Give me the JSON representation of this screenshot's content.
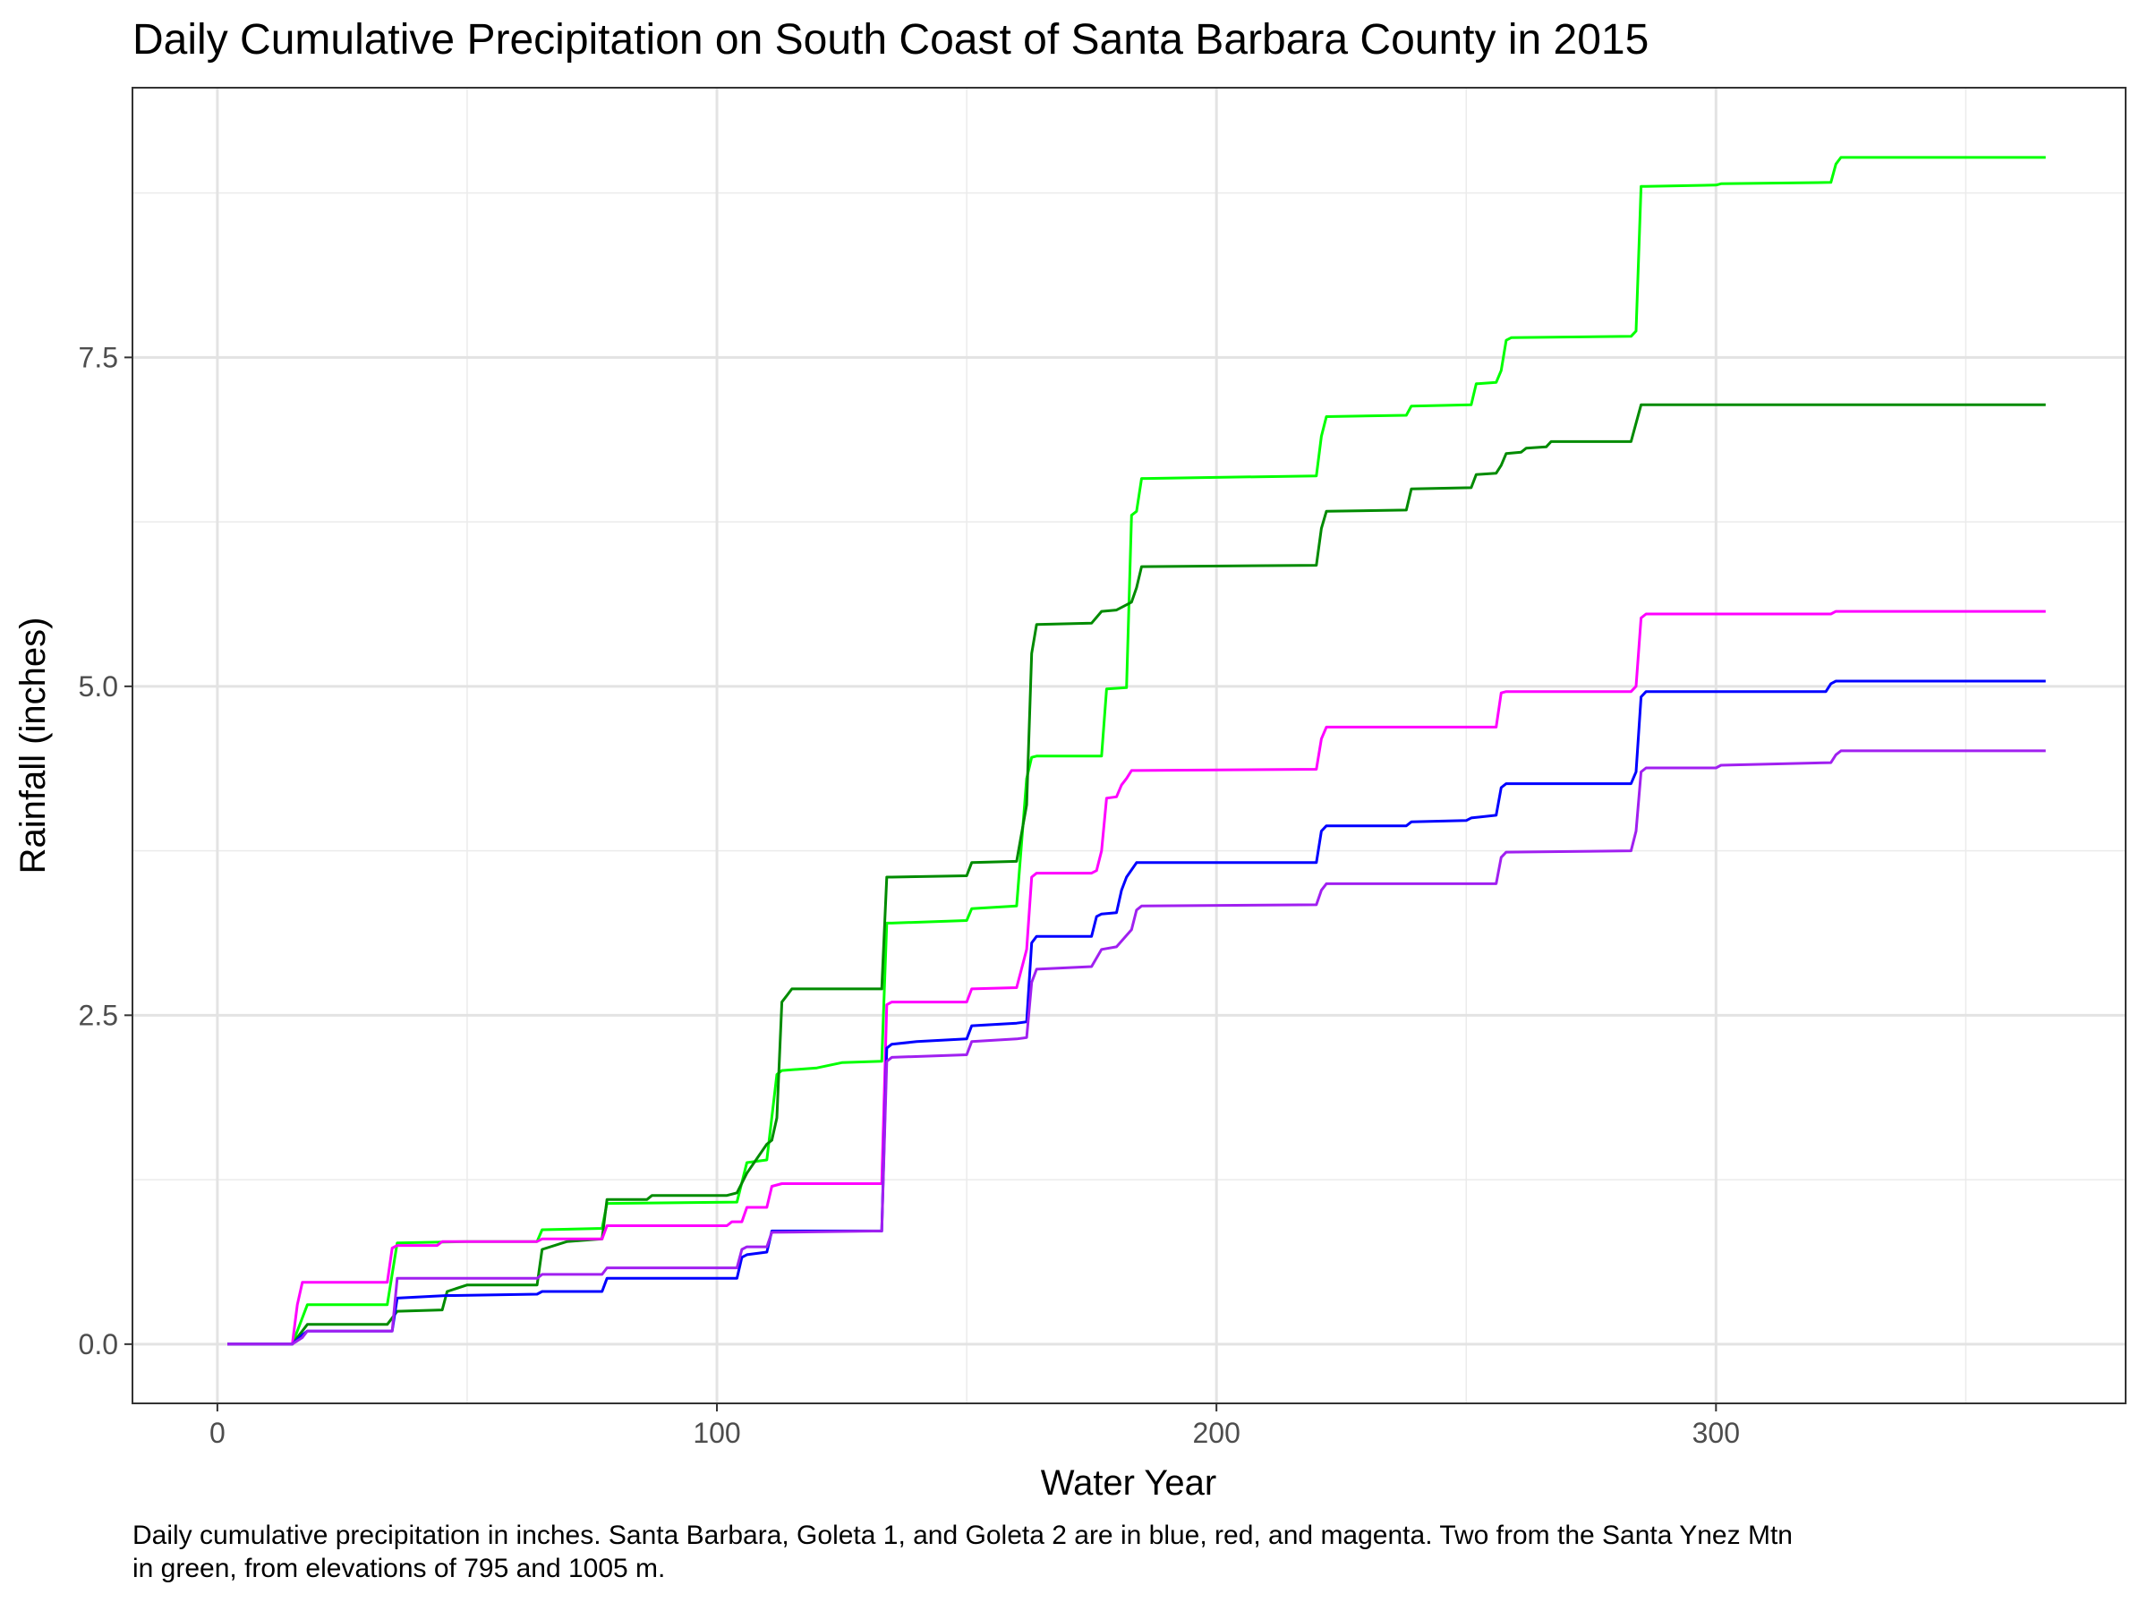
{
  "chart_data": {
    "type": "line",
    "title": "Daily Cumulative Precipitation on South Coast of Santa Barbara County in 2015",
    "xlabel": "Water Year",
    "ylabel": "Rainfall (inches)",
    "xlim": [
      -17,
      382
    ],
    "ylim": [
      -0.45,
      9.55
    ],
    "x_ticks": [
      0,
      100,
      200,
      300
    ],
    "x_tick_labels": [
      "0",
      "100",
      "200",
      "300"
    ],
    "y_ticks": [
      0,
      2.5,
      5,
      7.5
    ],
    "y_tick_labels": [
      "0.0",
      "2.5",
      "5.0",
      "7.5"
    ],
    "x_minor_grid": [
      50,
      150,
      250,
      350
    ],
    "y_minor_grid": [
      1.25,
      3.75,
      6.25,
      8.75
    ],
    "grid": true,
    "theme": "bw",
    "caption": "Daily cumulative precipitation in inches. Santa Barbara, Goleta 1, and Goleta 2 are in blue, red, and magenta. Two from the Santa Ynez Mtn\nin green, from elevations of 795 and 1005 m.",
    "series": [
      {
        "color": "#00ff00",
        "x": [
          2,
          15,
          17,
          18,
          34,
          36,
          50,
          64,
          65,
          77,
          78,
          104,
          106,
          110,
          112,
          113,
          120,
          125,
          133,
          134,
          135,
          150,
          151,
          160,
          162,
          163,
          164,
          177,
          178,
          182,
          183,
          184,
          185,
          186,
          220,
          221,
          222,
          238,
          239,
          251,
          252,
          256,
          257,
          258,
          259,
          283,
          284,
          285,
          286,
          300,
          301,
          323,
          324,
          325,
          366
        ],
        "y": [
          0,
          0,
          0.2,
          0.3,
          0.3,
          0.77,
          0.78,
          0.78,
          0.87,
          0.88,
          1.07,
          1.08,
          1.38,
          1.4,
          2.05,
          2.08,
          2.1,
          2.14,
          2.15,
          3.2,
          3.2,
          3.22,
          3.31,
          3.33,
          4.3,
          4.46,
          4.47,
          4.47,
          4.98,
          4.99,
          6.3,
          6.33,
          6.58,
          6.58,
          6.6,
          6.9,
          7.05,
          7.06,
          7.13,
          7.14,
          7.3,
          7.31,
          7.4,
          7.63,
          7.65,
          7.66,
          7.7,
          8.8,
          8.8,
          8.81,
          8.82,
          8.83,
          8.97,
          9.02,
          9.02
        ]
      },
      {
        "color": "#008b00",
        "x": [
          2,
          15,
          17,
          18,
          34,
          36,
          45,
          46,
          50,
          64,
          65,
          70,
          77,
          78,
          86,
          87,
          102,
          104,
          106,
          110,
          111,
          112,
          113,
          114,
          115,
          133,
          134,
          135,
          150,
          151,
          160,
          162,
          163,
          164,
          175,
          177,
          180,
          183,
          184,
          185,
          220,
          221,
          222,
          238,
          239,
          251,
          252,
          256,
          257,
          258,
          261,
          262,
          266,
          267,
          283,
          284,
          285,
          366
        ],
        "y": [
          0,
          0,
          0.1,
          0.15,
          0.15,
          0.25,
          0.26,
          0.4,
          0.45,
          0.45,
          0.72,
          0.78,
          0.8,
          1.1,
          1.1,
          1.13,
          1.13,
          1.15,
          1.3,
          1.52,
          1.55,
          1.72,
          2.6,
          2.65,
          2.7,
          2.7,
          3.55,
          3.55,
          3.56,
          3.66,
          3.67,
          4.1,
          5.25,
          5.47,
          5.48,
          5.57,
          5.58,
          5.64,
          5.75,
          5.91,
          5.92,
          6.2,
          6.33,
          6.34,
          6.5,
          6.51,
          6.61,
          6.62,
          6.68,
          6.77,
          6.78,
          6.81,
          6.82,
          6.86,
          6.86,
          7.0,
          7.14,
          7.14
        ]
      },
      {
        "color": "#ff00ff",
        "x": [
          2,
          15,
          16,
          17,
          34,
          35,
          36,
          44,
          45,
          64,
          65,
          77,
          78,
          102,
          103,
          105,
          106,
          110,
          111,
          113,
          133,
          134,
          135,
          150,
          151,
          160,
          162,
          163,
          164,
          175,
          176,
          177,
          178,
          180,
          181,
          182,
          183,
          220,
          221,
          222,
          256,
          257,
          258,
          283,
          284,
          285,
          286,
          323,
          324,
          366
        ],
        "y": [
          0,
          0,
          0.3,
          0.47,
          0.47,
          0.73,
          0.75,
          0.75,
          0.78,
          0.78,
          0.8,
          0.8,
          0.9,
          0.9,
          0.93,
          0.93,
          1.04,
          1.04,
          1.2,
          1.22,
          1.22,
          2.58,
          2.6,
          2.6,
          2.7,
          2.71,
          3.0,
          3.55,
          3.58,
          3.58,
          3.6,
          3.75,
          4.15,
          4.16,
          4.25,
          4.3,
          4.36,
          4.37,
          4.6,
          4.69,
          4.69,
          4.95,
          4.96,
          4.96,
          5.0,
          5.52,
          5.55,
          5.55,
          5.57,
          5.57
        ]
      },
      {
        "color": "#0000ff",
        "x": [
          2,
          15,
          17,
          18,
          35,
          36,
          46,
          47,
          64,
          65,
          77,
          78,
          104,
          105,
          106,
          110,
          111,
          133,
          134,
          135,
          140,
          150,
          151,
          160,
          162,
          163,
          164,
          175,
          176,
          177,
          180,
          181,
          182,
          184,
          220,
          221,
          222,
          238,
          239,
          250,
          251,
          256,
          257,
          258,
          283,
          284,
          285,
          286,
          322,
          323,
          324,
          366
        ],
        "y": [
          0,
          0,
          0.07,
          0.1,
          0.1,
          0.35,
          0.37,
          0.37,
          0.38,
          0.4,
          0.4,
          0.5,
          0.5,
          0.66,
          0.68,
          0.7,
          0.86,
          0.86,
          2.25,
          2.28,
          2.3,
          2.32,
          2.42,
          2.44,
          2.45,
          3.05,
          3.1,
          3.1,
          3.25,
          3.27,
          3.28,
          3.45,
          3.55,
          3.66,
          3.66,
          3.9,
          3.94,
          3.94,
          3.97,
          3.98,
          4.0,
          4.02,
          4.23,
          4.26,
          4.26,
          4.35,
          4.92,
          4.96,
          4.96,
          5.02,
          5.04,
          5.04
        ]
      },
      {
        "color": "#a020f0",
        "x": [
          2,
          15,
          17,
          18,
          35,
          36,
          64,
          65,
          77,
          78,
          104,
          105,
          106,
          110,
          111,
          133,
          134,
          135,
          150,
          151,
          160,
          162,
          163,
          164,
          175,
          177,
          180,
          183,
          184,
          185,
          220,
          221,
          222,
          256,
          257,
          258,
          283,
          284,
          285,
          286,
          300,
          301,
          323,
          324,
          325,
          366
        ],
        "y": [
          0,
          0,
          0.05,
          0.1,
          0.1,
          0.5,
          0.5,
          0.53,
          0.53,
          0.58,
          0.58,
          0.72,
          0.74,
          0.74,
          0.85,
          0.86,
          2.15,
          2.18,
          2.2,
          2.3,
          2.32,
          2.33,
          2.75,
          2.85,
          2.87,
          3.0,
          3.02,
          3.15,
          3.3,
          3.33,
          3.34,
          3.45,
          3.5,
          3.5,
          3.7,
          3.74,
          3.75,
          3.9,
          4.35,
          4.38,
          4.38,
          4.4,
          4.42,
          4.48,
          4.51,
          4.51
        ]
      }
    ]
  }
}
